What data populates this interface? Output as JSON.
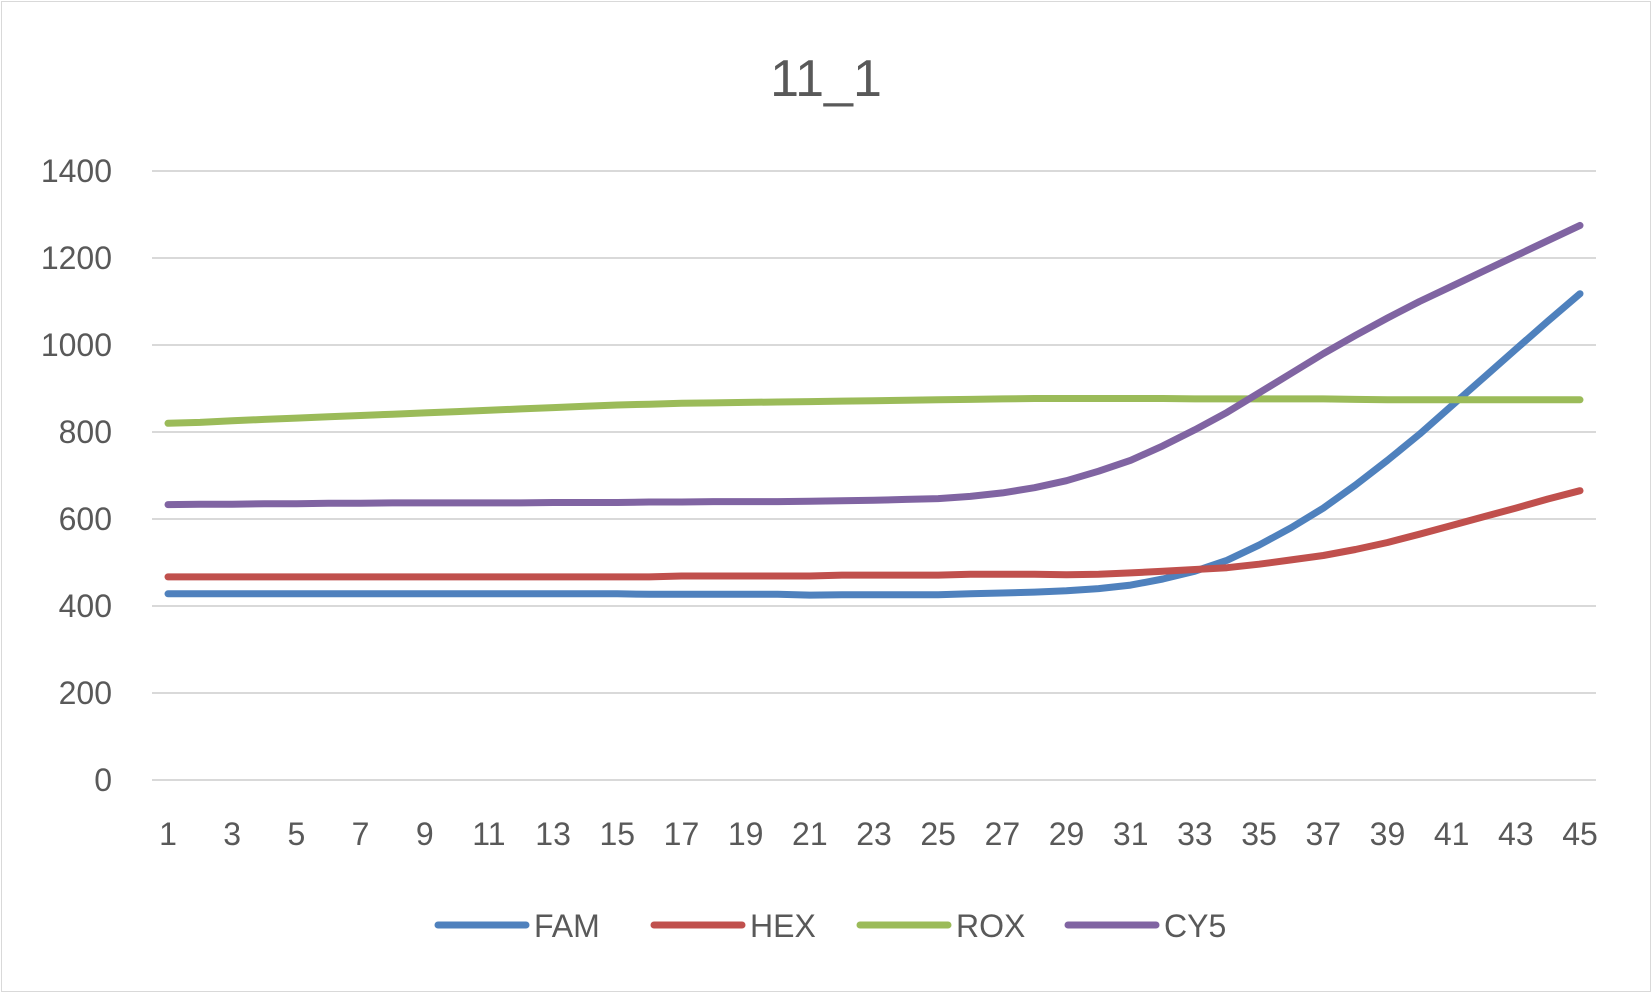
{
  "chart_data": {
    "type": "line",
    "title": "11_1",
    "xlabel": "",
    "ylabel": "",
    "ylim": [
      0,
      1400
    ],
    "yticks": [
      0,
      200,
      400,
      600,
      800,
      1000,
      1200,
      1400
    ],
    "x": [
      1,
      2,
      3,
      4,
      5,
      6,
      7,
      8,
      9,
      10,
      11,
      12,
      13,
      14,
      15,
      16,
      17,
      18,
      19,
      20,
      21,
      22,
      23,
      24,
      25,
      26,
      27,
      28,
      29,
      30,
      31,
      32,
      33,
      34,
      35,
      36,
      37,
      38,
      39,
      40,
      41,
      42,
      43,
      44,
      45
    ],
    "xtick_labels": [
      "1",
      "3",
      "5",
      "7",
      "9",
      "11",
      "13",
      "15",
      "17",
      "19",
      "21",
      "23",
      "25",
      "27",
      "29",
      "31",
      "33",
      "35",
      "37",
      "39",
      "41",
      "43",
      "45"
    ],
    "grid": "horizontal",
    "legend": "bottom",
    "series": [
      {
        "name": "FAM",
        "color": "#4f81bd",
        "values": [
          428,
          428,
          428,
          428,
          428,
          428,
          428,
          428,
          428,
          428,
          428,
          428,
          428,
          428,
          428,
          427,
          427,
          427,
          427,
          427,
          425,
          426,
          426,
          426,
          426,
          428,
          430,
          432,
          435,
          440,
          448,
          462,
          480,
          505,
          540,
          580,
          625,
          678,
          735,
          795,
          860,
          925,
          990,
          1055,
          1118
        ]
      },
      {
        "name": "HEX",
        "color": "#c0504d",
        "values": [
          467,
          467,
          467,
          467,
          467,
          467,
          467,
          467,
          467,
          467,
          467,
          467,
          467,
          467,
          467,
          467,
          469,
          469,
          469,
          469,
          469,
          471,
          471,
          471,
          471,
          473,
          473,
          473,
          472,
          473,
          476,
          480,
          484,
          488,
          496,
          506,
          516,
          530,
          546,
          565,
          585,
          605,
          625,
          646,
          665
        ]
      },
      {
        "name": "ROX",
        "color": "#9bbb59",
        "values": [
          820,
          822,
          826,
          829,
          832,
          835,
          838,
          841,
          844,
          847,
          850,
          853,
          856,
          859,
          862,
          864,
          866,
          867,
          868,
          869,
          870,
          871,
          872,
          873,
          874,
          875,
          876,
          877,
          877,
          877,
          877,
          877,
          876,
          876,
          876,
          876,
          876,
          875,
          874,
          874,
          874,
          874,
          874,
          874,
          874
        ]
      },
      {
        "name": "CY5",
        "color": "#8064a2",
        "values": [
          633,
          634,
          634,
          635,
          635,
          636,
          636,
          637,
          637,
          637,
          637,
          637,
          638,
          638,
          638,
          639,
          639,
          640,
          640,
          640,
          641,
          642,
          643,
          645,
          647,
          652,
          660,
          672,
          688,
          710,
          735,
          768,
          805,
          845,
          890,
          935,
          980,
          1022,
          1062,
          1100,
          1135,
          1170,
          1205,
          1240,
          1275
        ]
      }
    ]
  }
}
